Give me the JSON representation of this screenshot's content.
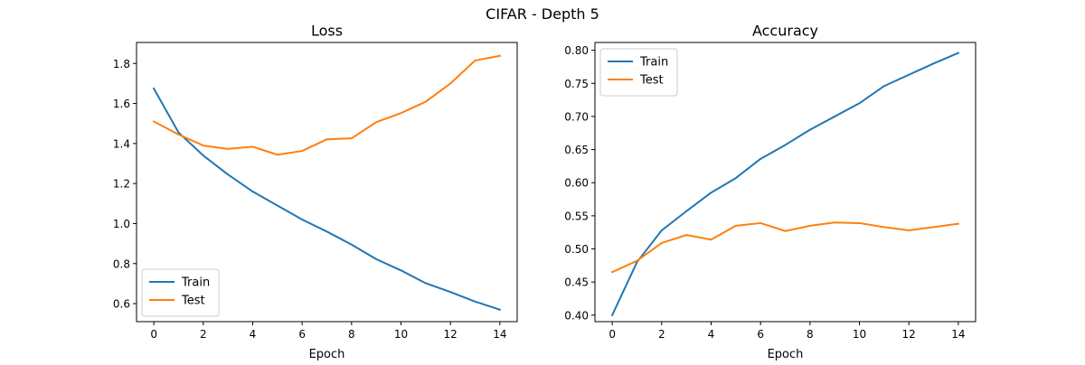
{
  "figure": {
    "suptitle": "CIFAR - Depth 5"
  },
  "colors": {
    "train": "#1f77b4",
    "test": "#ff7f0e"
  },
  "chart_data": [
    {
      "type": "line",
      "title": "Loss",
      "xlabel": "Epoch",
      "ylabel": "",
      "xlim": [
        -0.7,
        14.7
      ],
      "ylim": [
        0.51,
        1.905
      ],
      "xticks": [
        0,
        2,
        4,
        6,
        8,
        10,
        12,
        14
      ],
      "xtick_labels": [
        "0",
        "2",
        "4",
        "6",
        "8",
        "10",
        "12",
        "14"
      ],
      "yticks": [
        0.6,
        0.8,
        1.0,
        1.2,
        1.4,
        1.6,
        1.8
      ],
      "ytick_labels": [
        "0.6",
        "0.8",
        "1.0",
        "1.2",
        "1.4",
        "1.6",
        "1.8"
      ],
      "grid": false,
      "legend_position": "lower-left",
      "x": [
        0,
        1,
        2,
        3,
        4,
        5,
        6,
        7,
        8,
        9,
        10,
        11,
        12,
        13,
        14
      ],
      "series": [
        {
          "name": "Train",
          "color": "#1f77b4",
          "values": [
            1.675,
            1.455,
            1.34,
            1.245,
            1.16,
            1.09,
            1.02,
            0.96,
            0.895,
            0.822,
            0.766,
            0.702,
            0.658,
            0.61,
            0.57
          ]
        },
        {
          "name": "Test",
          "color": "#ff7f0e",
          "values": [
            1.51,
            1.445,
            1.39,
            1.373,
            1.384,
            1.344,
            1.363,
            1.421,
            1.426,
            1.507,
            1.552,
            1.609,
            1.7,
            1.815,
            1.838
          ]
        }
      ]
    },
    {
      "type": "line",
      "title": "Accuracy",
      "xlabel": "Epoch",
      "ylabel": "",
      "xlim": [
        -0.7,
        14.7
      ],
      "ylim": [
        0.3902,
        0.8118
      ],
      "xticks": [
        0,
        2,
        4,
        6,
        8,
        10,
        12,
        14
      ],
      "xtick_labels": [
        "0",
        "2",
        "4",
        "6",
        "8",
        "10",
        "12",
        "14"
      ],
      "yticks": [
        0.4,
        0.45,
        0.5,
        0.55,
        0.6,
        0.65,
        0.7,
        0.75,
        0.8
      ],
      "ytick_labels": [
        "0.40",
        "0.45",
        "0.50",
        "0.55",
        "0.60",
        "0.65",
        "0.70",
        "0.75",
        "0.80"
      ],
      "grid": false,
      "legend_position": "upper-left",
      "x": [
        0,
        1,
        2,
        3,
        4,
        5,
        6,
        7,
        8,
        9,
        10,
        11,
        12,
        13,
        14
      ],
      "series": [
        {
          "name": "Train",
          "color": "#1f77b4",
          "values": [
            0.4,
            0.48,
            0.528,
            0.557,
            0.585,
            0.607,
            0.636,
            0.657,
            0.68,
            0.7,
            0.72,
            0.746,
            0.763,
            0.78,
            0.796
          ]
        },
        {
          "name": "Test",
          "color": "#ff7f0e",
          "values": [
            0.465,
            0.482,
            0.509,
            0.521,
            0.514,
            0.535,
            0.539,
            0.527,
            0.535,
            0.54,
            0.539,
            0.533,
            0.528,
            0.533,
            0.538
          ]
        }
      ]
    }
  ]
}
